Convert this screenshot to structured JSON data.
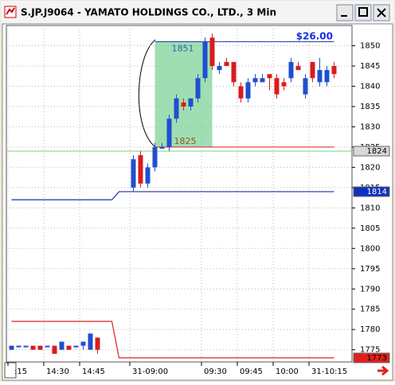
{
  "window_title": "S.JP.J9064 - YAMATO HOLDINGS CO., LTD., 3 Min",
  "chart_data": {
    "type": "candlestick",
    "categories": [
      ":15",
      null,
      null,
      null,
      null,
      "14:30",
      null,
      null,
      null,
      null,
      "14:45",
      null,
      null,
      null,
      null,
      null,
      null,
      "31-09:00",
      null,
      null,
      null,
      null,
      null,
      null,
      null,
      null,
      null,
      "09:30",
      null,
      null,
      null,
      null,
      "09:45",
      null,
      null,
      null,
      null,
      "10:00",
      null,
      null,
      null,
      null,
      "31-10:15",
      null,
      null,
      null,
      null,
      null
    ],
    "open": [
      1775,
      1776,
      1776,
      1776,
      1776,
      1776,
      1776,
      1775,
      1776,
      1776,
      1776,
      1775,
      1778,
      null,
      null,
      null,
      null,
      1815,
      1823,
      1816,
      1820,
      1825,
      1825,
      1832,
      1836,
      1835,
      1837,
      1842,
      1852,
      1844,
      1846,
      1846,
      1840,
      1837,
      1841,
      1841,
      1843,
      1842,
      1841,
      1842,
      1845,
      1838,
      1846,
      1841,
      1841,
      1845,
      null,
      null
    ],
    "high": [
      1776,
      1776,
      1776,
      1776,
      1776,
      1776,
      1776,
      1777,
      1776,
      1776,
      1777,
      1779,
      1778,
      null,
      null,
      null,
      null,
      1823,
      1824,
      1821,
      1826,
      1826,
      1833,
      1838,
      1837,
      1837,
      1843,
      1852,
      1853,
      1846,
      1847,
      1846,
      1841,
      1842,
      1843,
      1843,
      1843,
      1843,
      1842,
      1847,
      1846,
      1843,
      1846,
      1847,
      1845,
      1846,
      null,
      null
    ],
    "low": [
      1775,
      1776,
      1776,
      1775,
      1775,
      1776,
      1774,
      1775,
      1775,
      1776,
      1775,
      1775,
      1774,
      null,
      null,
      null,
      null,
      1814,
      1815,
      1815,
      1819,
      1825,
      1824,
      1831,
      1834,
      1834,
      1836,
      1841,
      1844,
      1843,
      1845,
      1840,
      1836,
      1836,
      1840,
      1841,
      1839,
      1837,
      1839,
      1841,
      1844,
      1837,
      1841,
      1840,
      1840,
      1842,
      null,
      null
    ],
    "close": [
      1776,
      1776,
      1776,
      1775,
      1775,
      1776,
      1774,
      1777,
      1775,
      1776,
      1777,
      1779,
      1775,
      null,
      null,
      null,
      null,
      1822,
      1816,
      1820,
      1825,
      1825,
      1832,
      1837,
      1835,
      1837,
      1842,
      1851,
      1845,
      1845,
      1845,
      1841,
      1837,
      1841,
      1842,
      1842,
      1842,
      1838,
      1840,
      1846,
      1844,
      1842,
      1842,
      1844,
      1844,
      1843,
      null,
      null
    ],
    "up_color": "#1f4fd0",
    "down_color": "#d81c1c",
    "lines": [
      {
        "color": "#1a2ea8",
        "values": [
          1812,
          1812,
          1812,
          1812,
          1812,
          1812,
          1812,
          1812,
          1812,
          1812,
          1812,
          1812,
          1812,
          1812,
          1812,
          1814,
          1814,
          1814,
          1814,
          1814,
          1814,
          1814,
          1814,
          1814,
          1814,
          1814,
          1814,
          1814,
          1814,
          1814,
          1814,
          1814,
          1814,
          1814,
          1814,
          1814,
          1814,
          1814,
          1814,
          1814,
          1814,
          1814,
          1814,
          1814,
          1814,
          1814,
          null,
          null
        ]
      },
      {
        "color": "#e02020",
        "values": [
          1782,
          1782,
          1782,
          1782,
          1782,
          1782,
          1782,
          1782,
          1782,
          1782,
          1782,
          1782,
          1782,
          1782,
          1782,
          1773,
          1773,
          1773,
          1773,
          1773,
          1773,
          1773,
          1773,
          1773,
          1773,
          1773,
          1773,
          1773,
          1773,
          1773,
          1773,
          1773,
          1773,
          1773,
          1773,
          1773,
          1773,
          1773,
          1773,
          1773,
          1773,
          1773,
          1773,
          1773,
          1773,
          1773,
          null,
          null
        ]
      }
    ],
    "levels": [
      {
        "value": 1851,
        "color": "#1a2ea8"
      },
      {
        "value": 1825,
        "color": "#e02020"
      },
      {
        "value": 1824,
        "color": "#7fcf7f"
      }
    ],
    "box": {
      "top": 1851,
      "bottom": 1825,
      "color": "#7fd39a",
      "top_color": "#2f5fb0",
      "bottom_color": "#8a5a20"
    },
    "range_label": "$26.00",
    "range_label_color": "#1a2ee0",
    "price_markers": [
      {
        "value": 1824,
        "bg": "#d8d8d8",
        "fg": "#000000"
      },
      {
        "value": 1814,
        "bg": "#1030c0",
        "fg": "#ffffff"
      },
      {
        "value": 1773,
        "bg": "#e02020",
        "fg": "#000000"
      }
    ],
    "ylim": [
      1772,
      1855
    ],
    "yticks": [
      1775,
      1780,
      1785,
      1790,
      1795,
      1800,
      1805,
      1810,
      1815,
      1820,
      1825,
      1830,
      1835,
      1840,
      1845,
      1850
    ],
    "grid": true
  }
}
